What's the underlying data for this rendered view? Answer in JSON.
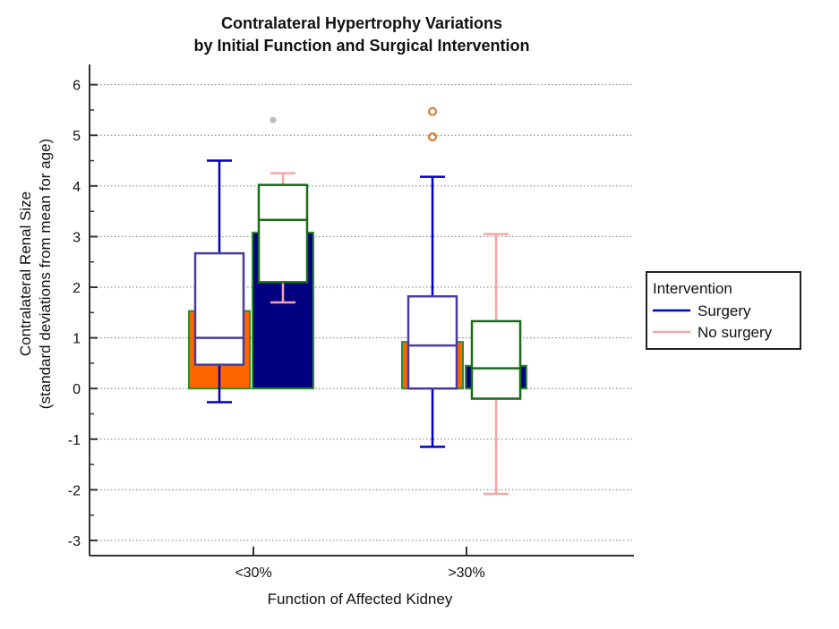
{
  "chart_data": {
    "type": "box",
    "title": [
      "Contralateral Hypertrophy Variations",
      "by Initial Function and Surgical Intervention"
    ],
    "xlabel": "Function of Affected Kidney",
    "ylabel": [
      "Contralateral Renal Size",
      "(standard deviations from mean for age)"
    ],
    "ylim": [
      -3.3,
      6.4
    ],
    "yticks": [
      -3,
      -2,
      -1,
      0,
      1,
      2,
      3,
      4,
      5,
      6
    ],
    "ytick_labels": [
      "-3",
      "-2",
      "-1",
      "0",
      "1",
      "2",
      "3",
      "4",
      "5",
      "6"
    ],
    "grid": true,
    "categories": [
      "<30%",
      ">30%"
    ],
    "bars": [
      {
        "category": 0,
        "slot": 0,
        "value": 1.53,
        "fill": "#ff6600",
        "edge": "#2e8b2e"
      },
      {
        "category": 0,
        "slot": 1,
        "value": 3.08,
        "fill": "#000080",
        "edge": "#2e8b2e"
      },
      {
        "category": 1,
        "slot": 0,
        "value": 0.92,
        "fill": "#ff6600",
        "edge": "#2e8b2e"
      },
      {
        "category": 1,
        "slot": 1,
        "value": 0.45,
        "fill": "#000080",
        "edge": "#2e8b2e"
      }
    ],
    "boxes": [
      {
        "category": 0,
        "slot": 0,
        "whisker_low": -0.27,
        "q1": 0.47,
        "median": 1.0,
        "q3": 2.67,
        "whisker_high": 4.5,
        "box_edge": "#4b3c9b",
        "whisker_color": "#0000bb",
        "outliers": []
      },
      {
        "category": 0,
        "slot": 1,
        "whisker_low": 1.7,
        "q1": 2.1,
        "median": 3.33,
        "q3": 4.02,
        "whisker_high": 4.25,
        "box_edge": "#1a6b1a",
        "whisker_color": "#f4a6a6",
        "outliers": [
          5.3
        ]
      },
      {
        "category": 1,
        "slot": 0,
        "whisker_low": -1.15,
        "q1": 0.0,
        "median": 0.85,
        "q3": 1.82,
        "whisker_high": 4.18,
        "box_edge": "#4b3c9b",
        "whisker_color": "#0000bb",
        "outliers": [
          5.47,
          4.97
        ]
      },
      {
        "category": 1,
        "slot": 1,
        "whisker_low": -2.08,
        "q1": -0.2,
        "median": 0.4,
        "q3": 1.33,
        "whisker_high": 3.05,
        "box_edge": "#1a6b1a",
        "whisker_color": "#f4a6a6",
        "outliers": []
      }
    ],
    "outlier_colors": [
      "#bbbbbb",
      "#e07020"
    ],
    "legend": {
      "title": "Intervention",
      "placement": "right",
      "entries": [
        {
          "label": "Surgery",
          "color": "#0000bb"
        },
        {
          "label": "No surgery",
          "color": "#f4a6a6"
        }
      ]
    }
  }
}
